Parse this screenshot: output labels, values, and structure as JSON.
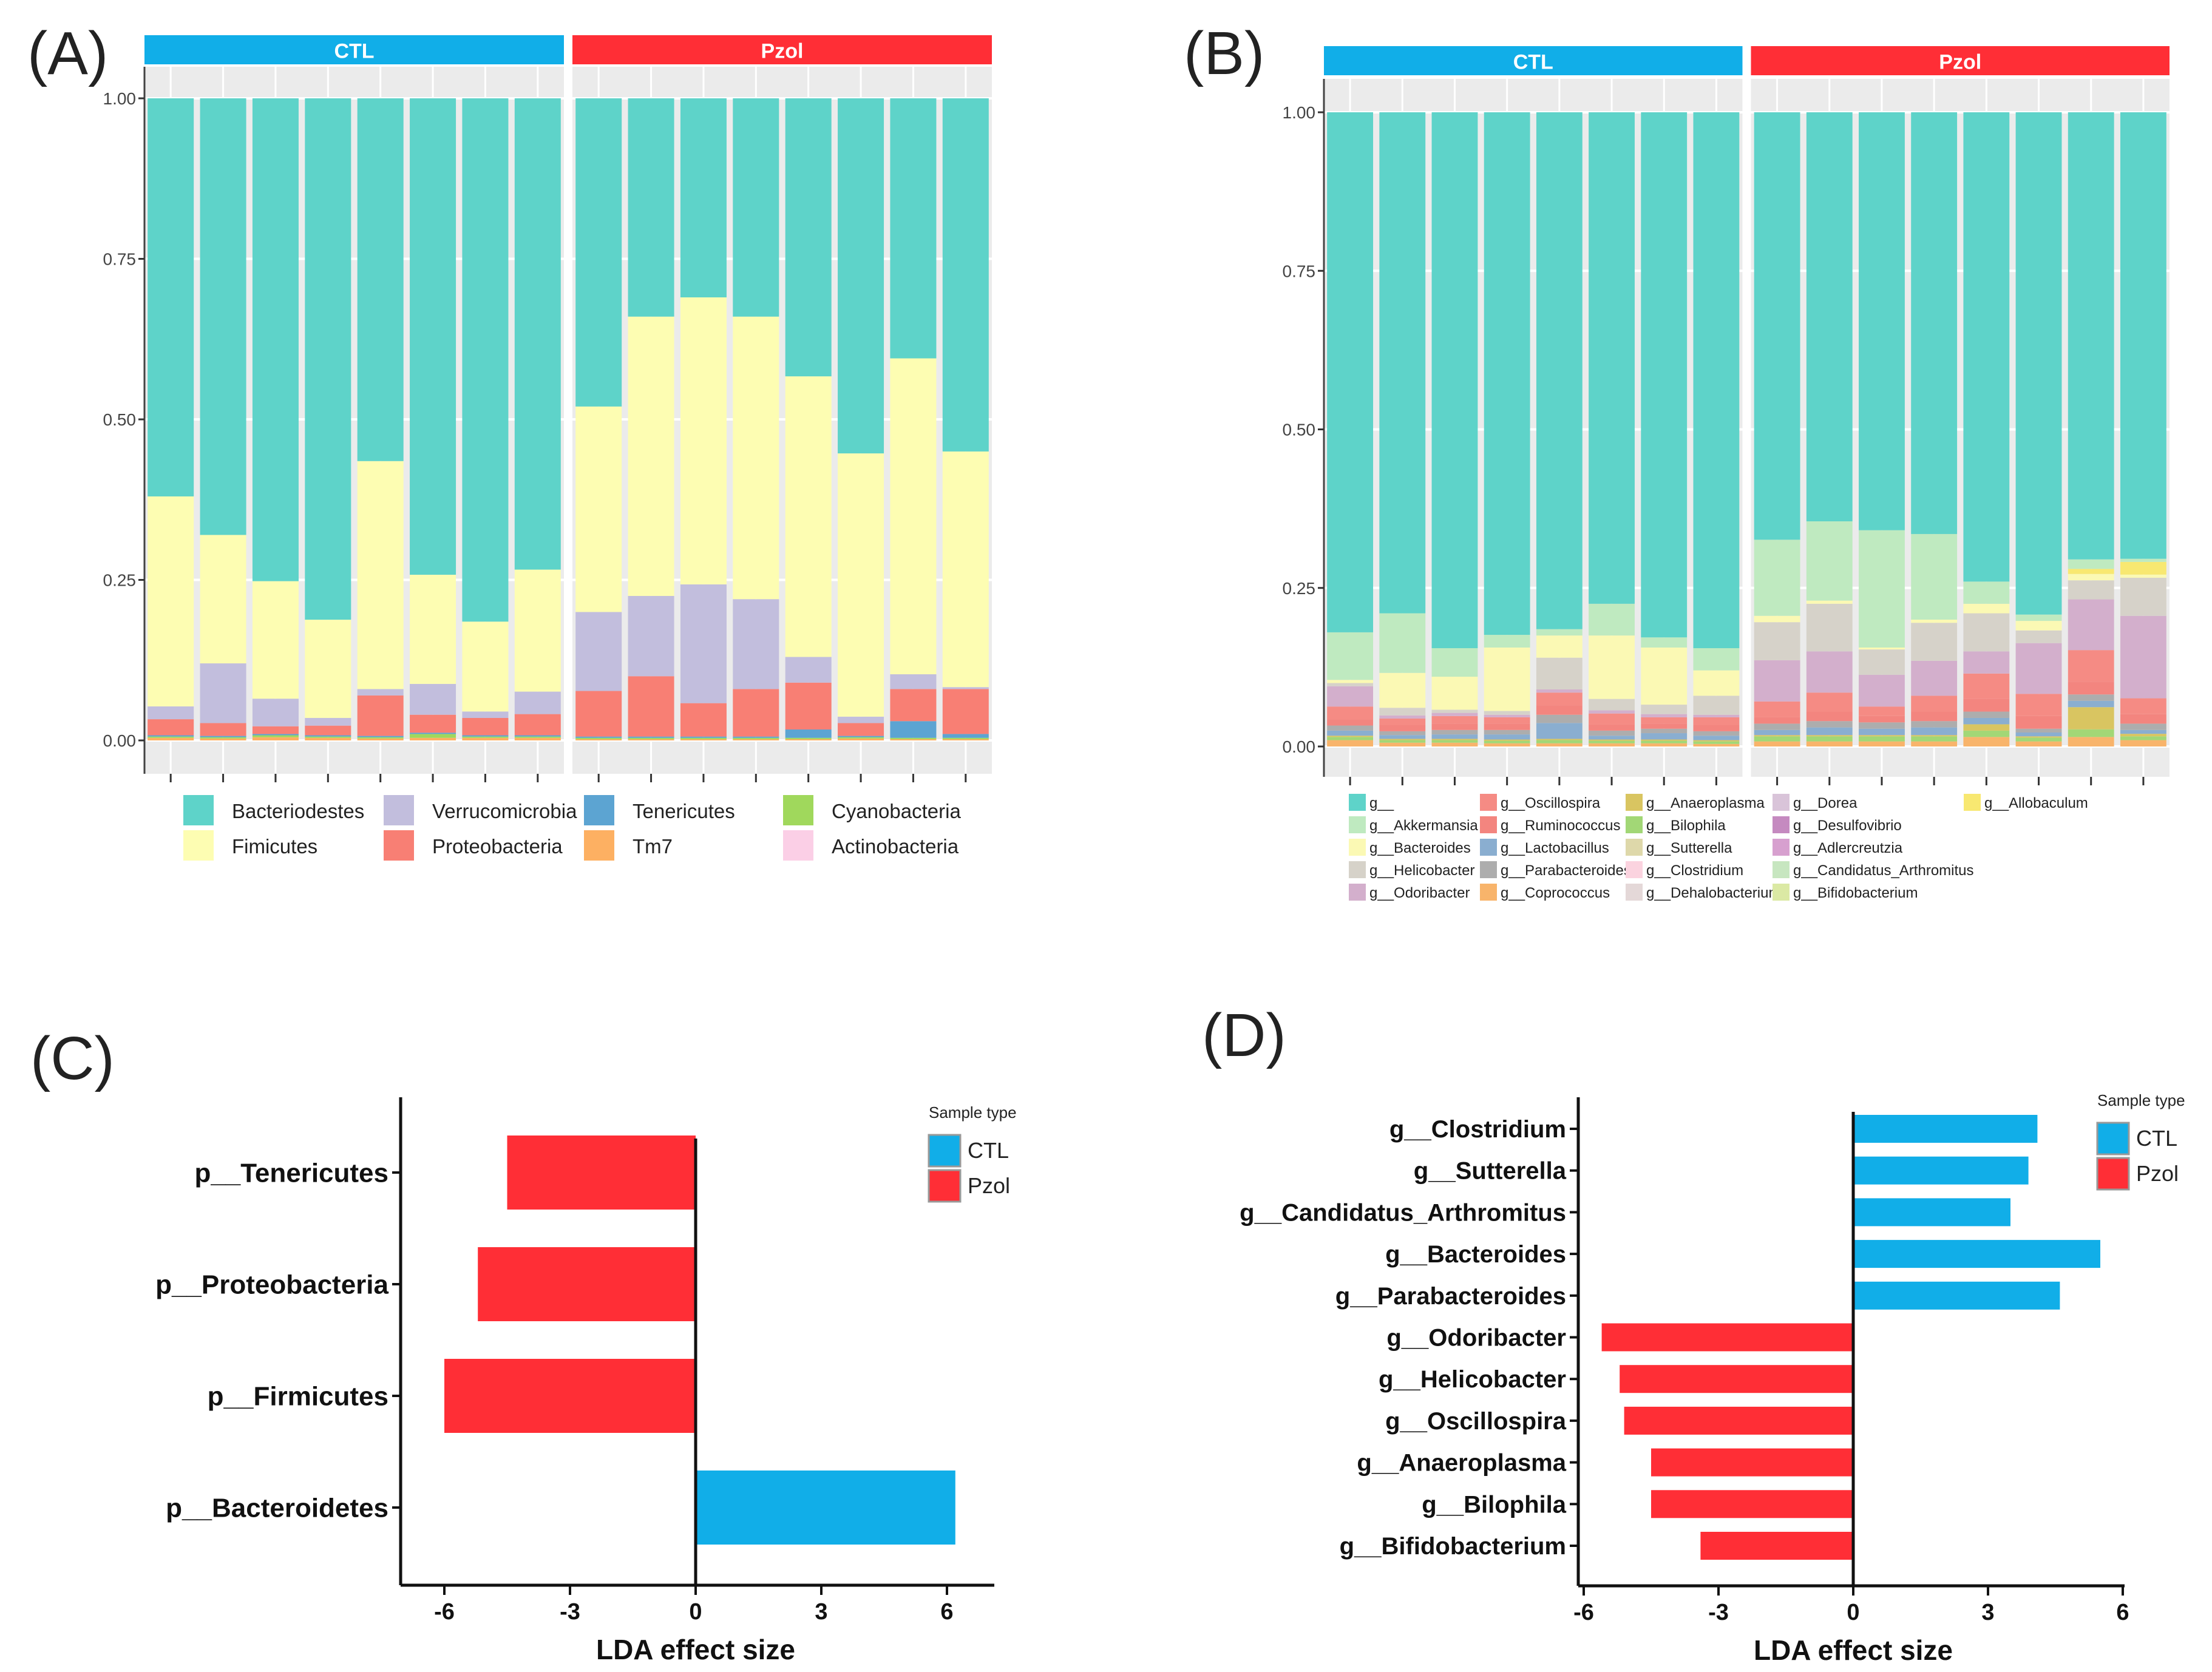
{
  "panels": {
    "A": "(A)",
    "B": "(B)",
    "C": "(C)",
    "D": "(D)"
  },
  "chart_data": [
    {
      "id": "A",
      "type": "bar",
      "stacked": true,
      "facets": [
        "CTL",
        "Pzol"
      ],
      "facet_colors": [
        "#11aee8",
        "#ff2e36"
      ],
      "ylim": [
        0,
        1
      ],
      "yticks": [
        "0.00",
        "0.25",
        "0.50",
        "0.75",
        "1.00"
      ],
      "legend": [
        {
          "name": "Bacteriodestes",
          "color": "#5ed3c9"
        },
        {
          "name": "Fimicutes",
          "color": "#fdfdb2"
        },
        {
          "name": "Verrucomicrobia",
          "color": "#c2bedd"
        },
        {
          "name": "Proteobacteria",
          "color": "#f87f74"
        },
        {
          "name": "Tenericutes",
          "color": "#5ca4d2"
        },
        {
          "name": "Tm7",
          "color": "#fdb062"
        },
        {
          "name": "Cyanobacteria",
          "color": "#a0d85c"
        },
        {
          "name": "Actinobacteria",
          "color": "#fbcfe6"
        }
      ],
      "stack_order": [
        "Tm7",
        "Cyanobacteria",
        "Tenericutes",
        "Proteobacteria",
        "Verrucomicrobia",
        "Fimicutes",
        "Bacteriodestes"
      ],
      "samples": [
        {
          "facet": 0,
          "v": {
            "Tm7": 0.004,
            "Cyanobacteria": 0.002,
            "Tenericutes": 0.002,
            "Proteobacteria": 0.025,
            "Verrucomicrobia": 0.02,
            "Fimicutes": 0.327
          }
        },
        {
          "facet": 0,
          "v": {
            "Tm7": 0.003,
            "Cyanobacteria": 0.002,
            "Tenericutes": 0.002,
            "Proteobacteria": 0.02,
            "Verrucomicrobia": 0.093,
            "Fimicutes": 0.2
          }
        },
        {
          "facet": 0,
          "v": {
            "Tm7": 0.005,
            "Cyanobacteria": 0.003,
            "Tenericutes": 0.002,
            "Proteobacteria": 0.012,
            "Verrucomicrobia": 0.043,
            "Fimicutes": 0.183
          }
        },
        {
          "facet": 0,
          "v": {
            "Tm7": 0.004,
            "Cyanobacteria": 0.002,
            "Tenericutes": 0.002,
            "Proteobacteria": 0.015,
            "Verrucomicrobia": 0.012,
            "Fimicutes": 0.153
          }
        },
        {
          "facet": 0,
          "v": {
            "Tm7": 0.003,
            "Cyanobacteria": 0.002,
            "Tenericutes": 0.002,
            "Proteobacteria": 0.063,
            "Verrucomicrobia": 0.01,
            "Fimicutes": 0.355
          }
        },
        {
          "facet": 0,
          "v": {
            "Tm7": 0.004,
            "Cyanobacteria": 0.006,
            "Tenericutes": 0.002,
            "Proteobacteria": 0.028,
            "Verrucomicrobia": 0.048,
            "Fimicutes": 0.17
          }
        },
        {
          "facet": 0,
          "v": {
            "Tm7": 0.004,
            "Cyanobacteria": 0.002,
            "Tenericutes": 0.002,
            "Proteobacteria": 0.027,
            "Verrucomicrobia": 0.01,
            "Fimicutes": 0.14
          }
        },
        {
          "facet": 0,
          "v": {
            "Tm7": 0.004,
            "Cyanobacteria": 0.002,
            "Tenericutes": 0.002,
            "Proteobacteria": 0.033,
            "Verrucomicrobia": 0.035,
            "Fimicutes": 0.19
          }
        },
        {
          "facet": 1,
          "v": {
            "Tm7": 0.002,
            "Cyanobacteria": 0.002,
            "Tenericutes": 0.002,
            "Proteobacteria": 0.071,
            "Verrucomicrobia": 0.123,
            "Fimicutes": 0.32
          }
        },
        {
          "facet": 1,
          "v": {
            "Tm7": 0.002,
            "Cyanobacteria": 0.002,
            "Tenericutes": 0.002,
            "Proteobacteria": 0.094,
            "Verrucomicrobia": 0.125,
            "Fimicutes": 0.435
          }
        },
        {
          "facet": 1,
          "v": {
            "Tm7": 0.002,
            "Cyanobacteria": 0.002,
            "Tenericutes": 0.002,
            "Proteobacteria": 0.052,
            "Verrucomicrobia": 0.185,
            "Fimicutes": 0.447
          }
        },
        {
          "facet": 1,
          "v": {
            "Tm7": 0.002,
            "Cyanobacteria": 0.002,
            "Tenericutes": 0.002,
            "Proteobacteria": 0.074,
            "Verrucomicrobia": 0.14,
            "Fimicutes": 0.44
          }
        },
        {
          "facet": 1,
          "v": {
            "Tm7": 0.002,
            "Cyanobacteria": 0.002,
            "Tenericutes": 0.013,
            "Proteobacteria": 0.073,
            "Verrucomicrobia": 0.04,
            "Fimicutes": 0.437
          }
        },
        {
          "facet": 1,
          "v": {
            "Tm7": 0.003,
            "Cyanobacteria": 0.002,
            "Tenericutes": 0.002,
            "Proteobacteria": 0.02,
            "Verrucomicrobia": 0.01,
            "Fimicutes": 0.41
          }
        },
        {
          "facet": 1,
          "v": {
            "Tm7": 0.002,
            "Cyanobacteria": 0.002,
            "Tenericutes": 0.026,
            "Proteobacteria": 0.05,
            "Verrucomicrobia": 0.023,
            "Fimicutes": 0.492
          }
        },
        {
          "facet": 1,
          "v": {
            "Tm7": 0.002,
            "Cyanobacteria": 0.002,
            "Tenericutes": 0.006,
            "Proteobacteria": 0.07,
            "Verrucomicrobia": 0.003,
            "Fimicutes": 0.367
          }
        }
      ]
    },
    {
      "id": "B",
      "type": "bar",
      "stacked": true,
      "facets": [
        "CTL",
        "Pzol"
      ],
      "facet_colors": [
        "#11aee8",
        "#ff2e36"
      ],
      "ylim": [
        0,
        1
      ],
      "yticks": [
        "0.00",
        "0.25",
        "0.50",
        "0.75",
        "1.00"
      ],
      "legend_columns": [
        [
          {
            "name": "g__",
            "color": "#5ed3c9"
          },
          {
            "name": "g__Akkermansia",
            "color": "#bfeac0"
          },
          {
            "name": "g__Bacteroides",
            "color": "#fbf9b4"
          },
          {
            "name": "g__Helicobacter",
            "color": "#d6d2c9"
          },
          {
            "name": "g__Odoribacter",
            "color": "#d3afcc"
          }
        ],
        [
          {
            "name": "g__Oscillospira",
            "color": "#f58b84"
          },
          {
            "name": "g__Ruminococcus",
            "color": "#f3857f"
          },
          {
            "name": "g__Lactobacillus",
            "color": "#8aaed0"
          },
          {
            "name": "g__Parabacteroides",
            "color": "#adadad"
          },
          {
            "name": "g__Coprococcus",
            "color": "#f8b46b"
          }
        ],
        [
          {
            "name": "g__Anaeroplasma",
            "color": "#d9c561"
          },
          {
            "name": "g__Bilophila",
            "color": "#a2d776"
          },
          {
            "name": "g__Sutterella",
            "color": "#ded8aa"
          },
          {
            "name": "g__Clostridium",
            "color": "#fbd3df"
          },
          {
            "name": "g__Dehalobacterium",
            "color": "#e4d8d8"
          }
        ],
        [
          {
            "name": "g__Dorea",
            "color": "#d9c4d9"
          },
          {
            "name": "g__Desulfovibrio",
            "color": "#c58ac0"
          },
          {
            "name": "g__Adlercreutzia",
            "color": "#d7a0cf"
          },
          {
            "name": "g__Candidatus_Arthromitus",
            "color": "#c7e6c0"
          },
          {
            "name": "g__Bifidobacterium",
            "color": "#dbe9a4"
          }
        ],
        [
          {
            "name": "g__Allobaculum",
            "color": "#f8e871"
          }
        ]
      ],
      "stack_order": [
        "g__Coprococcus",
        "g__Bilophila",
        "g__Anaeroplasma",
        "g__Lactobacillus",
        "g__Parabacteroides",
        "g__Ruminococcus",
        "g__Oscillospira",
        "g__Odoribacter",
        "g__Helicobacter",
        "g__Bacteroides",
        "g__Allobaculum",
        "g__Akkermansia",
        "g__"
      ],
      "samples": [
        {
          "facet": 0,
          "v": {
            "g__Coprococcus": 0.01,
            "g__Bilophila": 0.005,
            "g__Anaeroplasma": 0.002,
            "g__Lactobacillus": 0.008,
            "g__Parabacteroides": 0.008,
            "g__Ruminococcus": 0.01,
            "g__Oscillospira": 0.02,
            "g__Odoribacter": 0.032,
            "g__Helicobacter": 0.005,
            "g__Bacteroides": 0.005,
            "g__Allobaculum": 0,
            "g__Akkermansia": 0.075
          }
        },
        {
          "facet": 0,
          "v": {
            "g__Coprococcus": 0.006,
            "g__Bilophila": 0.004,
            "g__Anaeroplasma": 0.002,
            "g__Lactobacillus": 0.006,
            "g__Parabacteroides": 0.006,
            "g__Ruminococcus": 0.01,
            "g__Oscillospira": 0.01,
            "g__Odoribacter": 0.005,
            "g__Helicobacter": 0.012,
            "g__Bacteroides": 0.055,
            "g__Allobaculum": 0,
            "g__Akkermansia": 0.094
          }
        },
        {
          "facet": 0,
          "v": {
            "g__Coprococcus": 0.006,
            "g__Bilophila": 0.004,
            "g__Anaeroplasma": 0.002,
            "g__Lactobacillus": 0.007,
            "g__Parabacteroides": 0.007,
            "g__Ruminococcus": 0.01,
            "g__Oscillospira": 0.012,
            "g__Odoribacter": 0.005,
            "g__Helicobacter": 0.005,
            "g__Bacteroides": 0.052,
            "g__Allobaculum": 0,
            "g__Akkermansia": 0.045
          }
        },
        {
          "facet": 0,
          "v": {
            "g__Coprococcus": 0.005,
            "g__Bilophila": 0.004,
            "g__Anaeroplasma": 0.002,
            "g__Lactobacillus": 0.008,
            "g__Parabacteroides": 0.007,
            "g__Ruminococcus": 0.01,
            "g__Oscillospira": 0.01,
            "g__Odoribacter": 0.004,
            "g__Helicobacter": 0.006,
            "g__Bacteroides": 0.1,
            "g__Allobaculum": 0,
            "g__Akkermansia": 0.02
          }
        },
        {
          "facet": 0,
          "v": {
            "g__Coprococcus": 0.005,
            "g__Bilophila": 0.005,
            "g__Anaeroplasma": 0.002,
            "g__Lactobacillus": 0.025,
            "g__Parabacteroides": 0.013,
            "g__Ruminococcus": 0.015,
            "g__Oscillospira": 0.02,
            "g__Odoribacter": 0.005,
            "g__Helicobacter": 0.05,
            "g__Bacteroides": 0.035,
            "g__Allobaculum": 0,
            "g__Akkermansia": 0.01
          }
        },
        {
          "facet": 0,
          "v": {
            "g__Coprococcus": 0.005,
            "g__Bilophila": 0.004,
            "g__Anaeroplasma": 0.002,
            "g__Lactobacillus": 0.006,
            "g__Parabacteroides": 0.008,
            "g__Ruminococcus": 0.01,
            "g__Oscillospira": 0.017,
            "g__Odoribacter": 0.005,
            "g__Helicobacter": 0.018,
            "g__Bacteroides": 0.1,
            "g__Allobaculum": 0,
            "g__Akkermansia": 0.05
          }
        },
        {
          "facet": 0,
          "v": {
            "g__Coprococcus": 0.005,
            "g__Bilophila": 0.004,
            "g__Anaeroplasma": 0.002,
            "g__Lactobacillus": 0.01,
            "g__Parabacteroides": 0.007,
            "g__Ruminococcus": 0.008,
            "g__Oscillospira": 0.01,
            "g__Odoribacter": 0.005,
            "g__Helicobacter": 0.015,
            "g__Bacteroides": 0.09,
            "g__Allobaculum": 0,
            "g__Akkermansia": 0.016
          }
        },
        {
          "facet": 0,
          "v": {
            "g__Coprococcus": 0.004,
            "g__Bilophila": 0.004,
            "g__Anaeroplasma": 0.002,
            "g__Lactobacillus": 0.007,
            "g__Parabacteroides": 0.007,
            "g__Ruminococcus": 0.01,
            "g__Oscillospira": 0.012,
            "g__Odoribacter": 0.004,
            "g__Helicobacter": 0.03,
            "g__Bacteroides": 0.04,
            "g__Allobaculum": 0,
            "g__Akkermansia": 0.035
          }
        },
        {
          "facet": 1,
          "v": {
            "g__Coprococcus": 0.008,
            "g__Bilophila": 0.008,
            "g__Anaeroplasma": 0.002,
            "g__Lactobacillus": 0.008,
            "g__Parabacteroides": 0.01,
            "g__Ruminococcus": 0.01,
            "g__Oscillospira": 0.025,
            "g__Odoribacter": 0.065,
            "g__Helicobacter": 0.06,
            "g__Bacteroides": 0.01,
            "g__Allobaculum": 0,
            "g__Akkermansia": 0.12
          }
        },
        {
          "facet": 1,
          "v": {
            "g__Coprococcus": 0.008,
            "g__Bilophila": 0.008,
            "g__Anaeroplasma": 0.002,
            "g__Lactobacillus": 0.012,
            "g__Parabacteroides": 0.01,
            "g__Ruminococcus": 0.015,
            "g__Oscillospira": 0.03,
            "g__Odoribacter": 0.065,
            "g__Helicobacter": 0.075,
            "g__Bacteroides": 0.005,
            "g__Allobaculum": 0,
            "g__Akkermansia": 0.125
          }
        },
        {
          "facet": 1,
          "v": {
            "g__Coprococcus": 0.008,
            "g__Bilophila": 0.008,
            "g__Anaeroplasma": 0.002,
            "g__Lactobacillus": 0.01,
            "g__Parabacteroides": 0.01,
            "g__Ruminococcus": 0.01,
            "g__Oscillospira": 0.015,
            "g__Odoribacter": 0.05,
            "g__Helicobacter": 0.04,
            "g__Bacteroides": 0.003,
            "g__Allobaculum": 0,
            "g__Akkermansia": 0.185
          }
        },
        {
          "facet": 1,
          "v": {
            "g__Coprococcus": 0.008,
            "g__Bilophila": 0.008,
            "g__Anaeroplasma": 0.002,
            "g__Lactobacillus": 0.012,
            "g__Parabacteroides": 0.01,
            "g__Ruminococcus": 0.015,
            "g__Oscillospira": 0.025,
            "g__Odoribacter": 0.055,
            "g__Helicobacter": 0.06,
            "g__Bacteroides": 0.005,
            "g__Allobaculum": 0,
            "g__Akkermansia": 0.135
          }
        },
        {
          "facet": 1,
          "v": {
            "g__Coprococcus": 0.015,
            "g__Bilophila": 0.01,
            "g__Anaeroplasma": 0.01,
            "g__Lactobacillus": 0.01,
            "g__Parabacteroides": 0.01,
            "g__Ruminococcus": 0.02,
            "g__Oscillospira": 0.04,
            "g__Odoribacter": 0.035,
            "g__Helicobacter": 0.06,
            "g__Bacteroides": 0.015,
            "g__Allobaculum": 0,
            "g__Akkermansia": 0.035
          }
        },
        {
          "facet": 1,
          "v": {
            "g__Coprococcus": 0.008,
            "g__Bilophila": 0.006,
            "g__Anaeroplasma": 0.002,
            "g__Lactobacillus": 0.006,
            "g__Parabacteroides": 0.006,
            "g__Ruminococcus": 0.02,
            "g__Oscillospira": 0.035,
            "g__Odoribacter": 0.08,
            "g__Helicobacter": 0.02,
            "g__Bacteroides": 0.015,
            "g__Allobaculum": 0,
            "g__Akkermansia": 0.01
          }
        },
        {
          "facet": 1,
          "v": {
            "g__Coprococcus": 0.015,
            "g__Bilophila": 0.012,
            "g__Anaeroplasma": 0.035,
            "g__Lactobacillus": 0.01,
            "g__Parabacteroides": 0.01,
            "g__Ruminococcus": 0.02,
            "g__Oscillospira": 0.05,
            "g__Odoribacter": 0.08,
            "g__Helicobacter": 0.03,
            "g__Bacteroides": 0.01,
            "g__Allobaculum": 0.008,
            "g__Akkermansia": 0.015
          }
        },
        {
          "facet": 1,
          "v": {
            "g__Coprococcus": 0.01,
            "g__Bilophila": 0.006,
            "g__Anaeroplasma": 0.004,
            "g__Lactobacillus": 0.006,
            "g__Parabacteroides": 0.01,
            "g__Ruminococcus": 0.015,
            "g__Oscillospira": 0.025,
            "g__Odoribacter": 0.13,
            "g__Helicobacter": 0.06,
            "g__Bacteroides": 0.005,
            "g__Allobaculum": 0.02,
            "g__Akkermansia": 0.005
          }
        }
      ]
    },
    {
      "id": "C",
      "type": "bar",
      "orientation": "horizontal",
      "xlabel": "LDA effect size",
      "xlim": [
        -7,
        7
      ],
      "xticks": [
        "-6",
        "-3",
        "0",
        "3",
        "6"
      ],
      "legend_title": "Sample type",
      "legend": [
        {
          "name": "CTL",
          "color": "#11aee8"
        },
        {
          "name": "Pzol",
          "color": "#ff2e36"
        }
      ],
      "categories": [
        "p__Tenericutes",
        "p__Proteobacteria",
        "p__Firmicutes",
        "p__Bacteroidetes"
      ],
      "values": [
        -4.5,
        -5.2,
        -6.0,
        6.2
      ],
      "groups": [
        "Pzol",
        "Pzol",
        "Pzol",
        "CTL"
      ]
    },
    {
      "id": "D",
      "type": "bar",
      "orientation": "horizontal",
      "xlabel": "LDA effect size",
      "xlim": [
        -6,
        6
      ],
      "xticks": [
        "-6",
        "-3",
        "0",
        "3",
        "6"
      ],
      "legend_title": "Sample type",
      "legend": [
        {
          "name": "CTL",
          "color": "#11aee8"
        },
        {
          "name": "Pzol",
          "color": "#ff2e36"
        }
      ],
      "categories": [
        "g__Clostridium",
        "g__Sutterella",
        "g__Candidatus_Arthromitus",
        "g__Bacteroides",
        "g__Parabacteroides",
        "g__Odoribacter",
        "g__Helicobacter",
        "g__Oscillospira",
        "g__Anaeroplasma",
        "g__Bilophila",
        "g__Bifidobacterium"
      ],
      "values": [
        4.1,
        3.9,
        3.5,
        5.5,
        4.6,
        -5.6,
        -5.2,
        -5.1,
        -4.5,
        -4.5,
        -3.4
      ],
      "groups": [
        "CTL",
        "CTL",
        "CTL",
        "CTL",
        "CTL",
        "Pzol",
        "Pzol",
        "Pzol",
        "Pzol",
        "Pzol",
        "Pzol"
      ]
    }
  ]
}
